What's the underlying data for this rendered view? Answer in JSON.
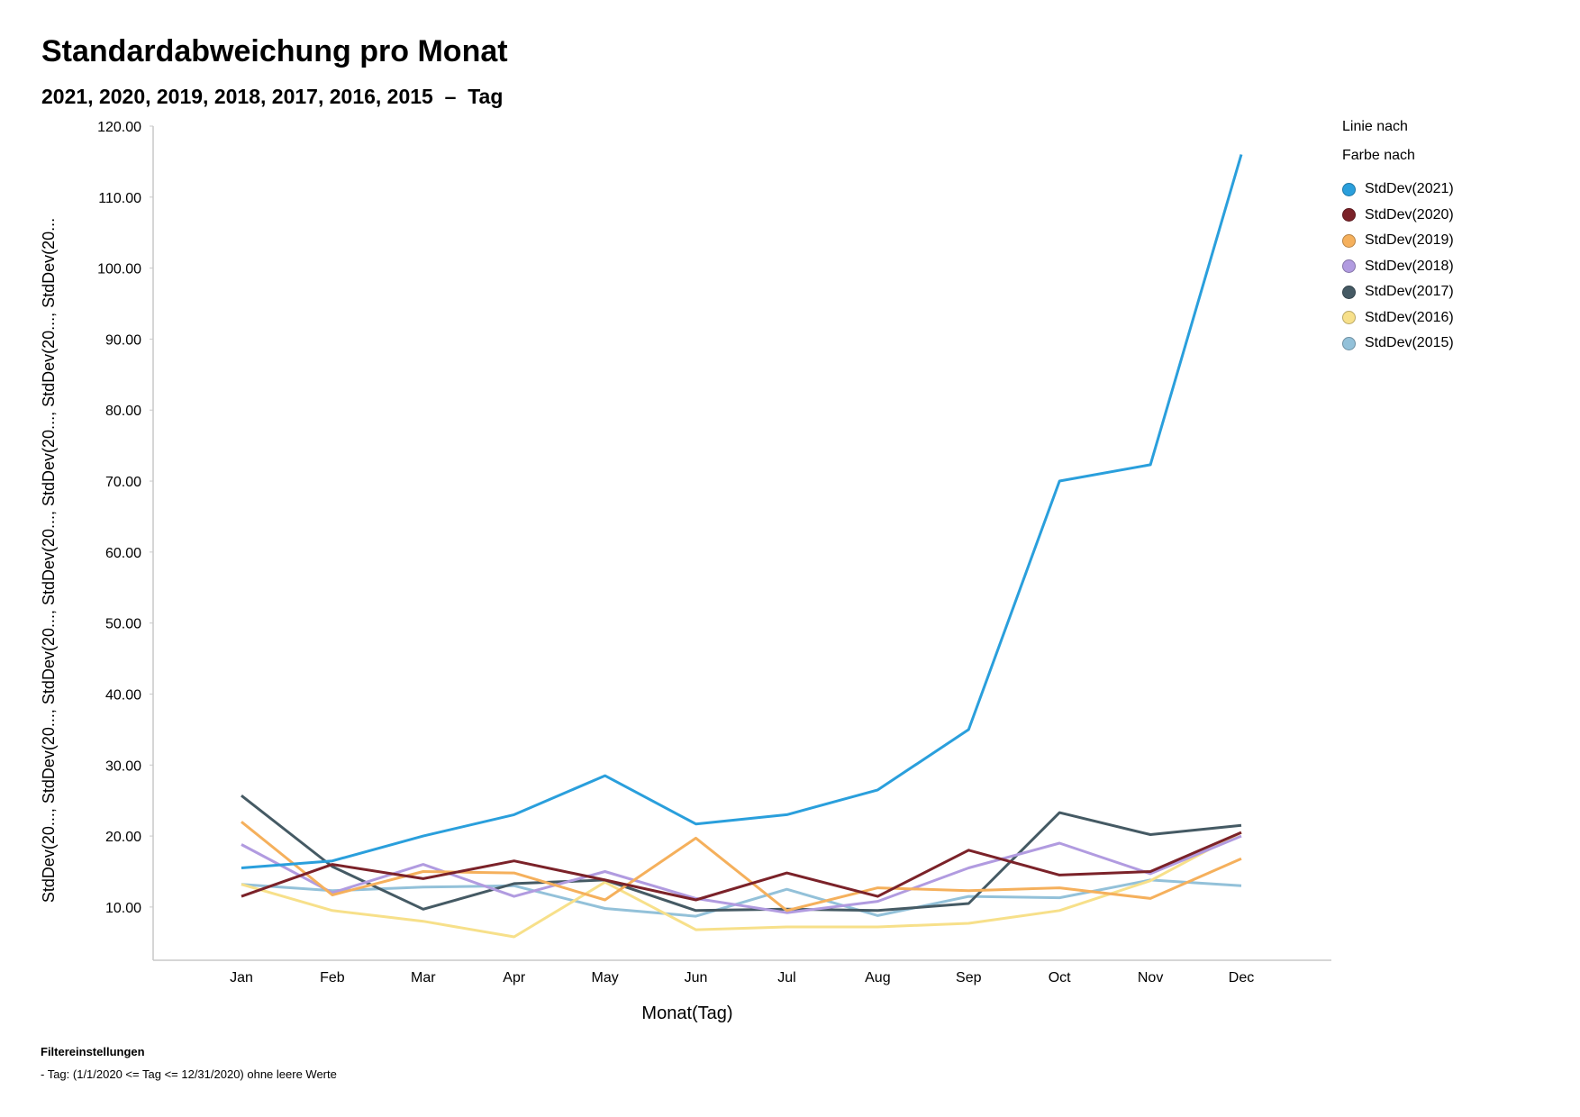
{
  "chart_data": {
    "type": "line",
    "title": "Standardabweichung pro Monat",
    "subtitle": "2021, 2020, 2019, 2018, 2017, 2016, 2015  –  Tag",
    "xlabel": "Monat(Tag)",
    "ylabel": "StdDev(20..., StdDev(20..., StdDev(20..., StdDev(20..., StdDev(20..., StdDev(20..., StdDev(20...",
    "ylim": [
      2.5,
      120
    ],
    "yticks": [
      10,
      20,
      30,
      40,
      50,
      60,
      70,
      80,
      90,
      100,
      110,
      120
    ],
    "ytick_labels": [
      "10.00",
      "20.00",
      "30.00",
      "40.00",
      "50.00",
      "60.00",
      "70.00",
      "80.00",
      "90.00",
      "100.00",
      "110.00",
      "120.00"
    ],
    "categories": [
      "Jan",
      "Feb",
      "Mar",
      "Apr",
      "May",
      "Jun",
      "Jul",
      "Aug",
      "Sep",
      "Oct",
      "Nov",
      "Dec"
    ],
    "legend_position": "right",
    "series": [
      {
        "name": "StdDev(2021)",
        "color": "#2a9fdc",
        "values": [
          15.5,
          16.5,
          20.0,
          23.0,
          28.5,
          21.7,
          23.0,
          26.5,
          35.0,
          70.0,
          72.3,
          116.0
        ]
      },
      {
        "name": "StdDev(2020)",
        "color": "#7b2229",
        "values": [
          11.5,
          16.0,
          14.0,
          16.5,
          13.8,
          11.0,
          14.8,
          11.5,
          18.0,
          14.5,
          15.0,
          20.5
        ]
      },
      {
        "name": "StdDev(2019)",
        "color": "#f5b05c",
        "values": [
          22.0,
          11.7,
          15.0,
          14.8,
          11.0,
          19.7,
          9.5,
          12.7,
          12.3,
          12.7,
          11.2,
          16.8
        ]
      },
      {
        "name": "StdDev(2018)",
        "color": "#b19be0",
        "values": [
          18.8,
          12.0,
          16.0,
          11.5,
          15.0,
          11.2,
          9.2,
          10.8,
          15.5,
          19.0,
          14.7,
          20.0
        ]
      },
      {
        "name": "StdDev(2017)",
        "color": "#455a64",
        "values": [
          25.7,
          15.7,
          9.7,
          13.3,
          13.8,
          9.5,
          9.7,
          9.5,
          10.5,
          23.3,
          20.2,
          21.5
        ]
      },
      {
        "name": "StdDev(2016)",
        "color": "#f7e08a",
        "values": [
          13.2,
          9.5,
          8.0,
          5.8,
          13.5,
          6.8,
          7.2,
          7.2,
          7.7,
          9.5,
          13.7,
          20.5
        ]
      },
      {
        "name": "StdDev(2015)",
        "color": "#93c1d9",
        "values": [
          13.2,
          12.3,
          12.8,
          13.0,
          9.8,
          8.7,
          12.5,
          8.8,
          11.5,
          11.3,
          13.8,
          13.0
        ]
      }
    ]
  },
  "legend": {
    "line_heading": "Linie nach",
    "color_heading": "Farbe nach"
  },
  "filters": {
    "heading": "Filtereinstellungen",
    "item": "-  Tag: (1/1/2020 <= Tag <= 12/31/2020) ohne leere Werte"
  }
}
